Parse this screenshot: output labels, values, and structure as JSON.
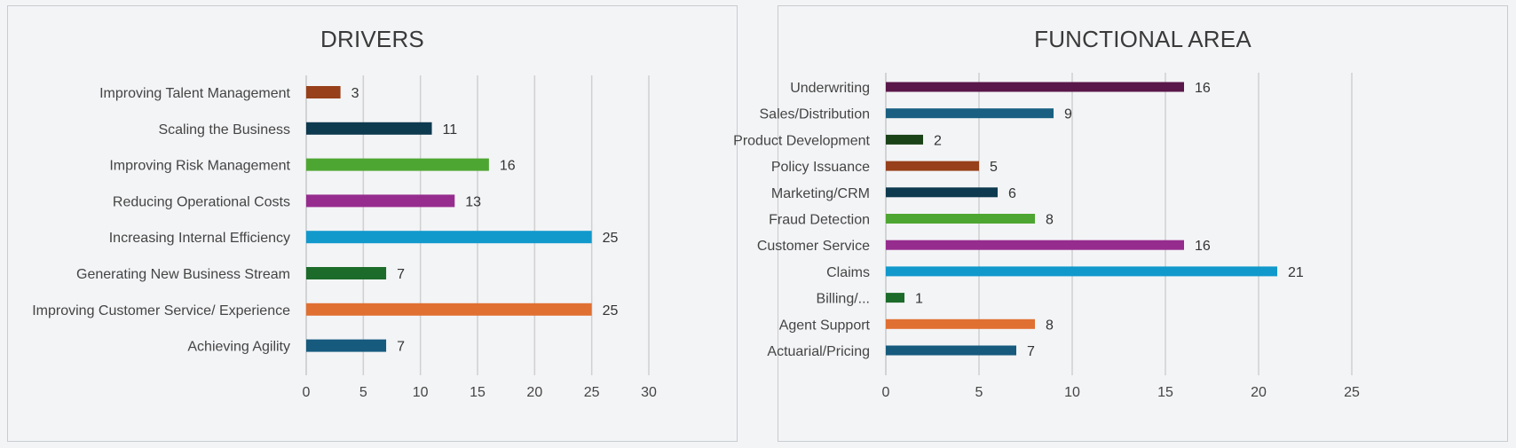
{
  "chart_data": [
    {
      "type": "bar",
      "orientation": "horizontal",
      "title": "DRIVERS",
      "categories": [
        "Improving Talent Management",
        "Scaling the Business",
        "Improving Risk Management",
        "Reducing Operational Costs",
        "Increasing Internal Efficiency",
        "Generating New Business Stream",
        "Improving Customer Service/ Experience",
        "Achieving Agility"
      ],
      "values": [
        3,
        11,
        16,
        13,
        25,
        7,
        25,
        7
      ],
      "colors": [
        "#97401a",
        "#0e3a4f",
        "#4ea632",
        "#962c8e",
        "#1199cc",
        "#1c6b2a",
        "#e06f32",
        "#165a7e"
      ],
      "xlim": [
        0,
        30
      ],
      "xticks": [
        "0",
        "5",
        "10",
        "15",
        "20",
        "25",
        "30"
      ],
      "xlabel": "",
      "ylabel": "",
      "grid": true,
      "legend": "none"
    },
    {
      "type": "bar",
      "orientation": "horizontal",
      "title": "FUNCTIONAL AREA",
      "categories": [
        "Underwriting",
        "Sales/Distribution",
        "Product Development",
        "Policy Issuance",
        "Marketing/CRM",
        "Fraud Detection",
        "Customer Service",
        "Claims",
        "Billing/...",
        "Agent Support",
        "Actuarial/Pricing"
      ],
      "values": [
        16,
        9,
        2,
        5,
        6,
        8,
        16,
        21,
        1,
        8,
        7
      ],
      "colors": [
        "#5a1749",
        "#185f82",
        "#1b4318",
        "#97401a",
        "#0e3a4f",
        "#4ea632",
        "#962c8e",
        "#1199cc",
        "#1c6b2a",
        "#e06f32",
        "#165a7e"
      ],
      "xlim": [
        0,
        25
      ],
      "xticks": [
        "0",
        "5",
        "10",
        "15",
        "20",
        "25"
      ],
      "xlabel": "",
      "ylabel": "",
      "grid": true,
      "legend": "none"
    }
  ]
}
